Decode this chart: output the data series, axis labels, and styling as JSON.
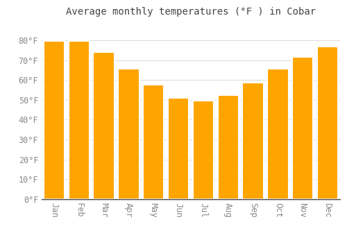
{
  "title": "Average monthly temperatures (°F ) in Cobar",
  "months": [
    "Jan",
    "Feb",
    "Mar",
    "Apr",
    "May",
    "Jun",
    "Jul",
    "Aug",
    "Sep",
    "Oct",
    "Nov",
    "Dec"
  ],
  "values": [
    79.5,
    79.5,
    74.0,
    65.5,
    57.5,
    51.0,
    49.5,
    52.5,
    58.5,
    65.5,
    71.5,
    77.0
  ],
  "bar_color_left": "#FFA500",
  "bar_color_right": "#FFB733",
  "background_color": "#FFFFFF",
  "grid_color": "#DDDDDD",
  "text_color": "#888888",
  "ylim": [
    0,
    88
  ],
  "yticks": [
    0,
    10,
    20,
    30,
    40,
    50,
    60,
    70,
    80
  ],
  "title_fontsize": 10,
  "tick_fontsize": 8.5
}
